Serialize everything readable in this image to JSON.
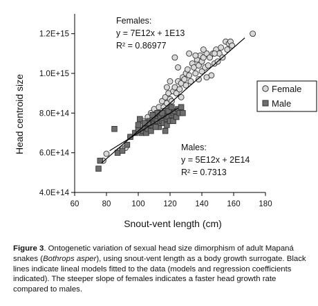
{
  "chart_data": {
    "type": "scatter",
    "xlabel": "Snout-vent length (cm)",
    "ylabel": "Head centroid size",
    "xlim": [
      60,
      180
    ],
    "ylim": [
      400000000000000.0,
      1300000000000000.0
    ],
    "x_ticks": [
      "60",
      "80",
      "100",
      "120",
      "140",
      "160",
      "180"
    ],
    "y_ticks": [
      "4.0E+14",
      "6.0E+14",
      "8.0E+14",
      "1.0E+15",
      "1.2E+15"
    ],
    "legend": {
      "position": "right",
      "entries": [
        "Female",
        "Male"
      ]
    },
    "series": [
      {
        "name": "Female",
        "marker": "circle",
        "fill": "#d9d9d9",
        "stroke": "#333333",
        "regression": {
          "slope": 7000000000000.0,
          "intercept": 10000000000000.0,
          "x_range": [
            77,
            167
          ]
        },
        "annotation": [
          "Females:",
          "y = 7E12x + 1E13",
          "R² = 0.86977"
        ],
        "points": [
          [
            78,
            560000000000000.0
          ],
          [
            80,
            595000000000000.0
          ],
          [
            88,
            610000000000000.0
          ],
          [
            90,
            620000000000000.0
          ],
          [
            92,
            625000000000000.0
          ],
          [
            95,
            680000000000000.0
          ],
          [
            100,
            730000000000000.0
          ],
          [
            103,
            760000000000000.0
          ],
          [
            105,
            750000000000000.0
          ],
          [
            106,
            780000000000000.0
          ],
          [
            108,
            800000000000000.0
          ],
          [
            110,
            820000000000000.0
          ],
          [
            112,
            800000000000000.0
          ],
          [
            113,
            830000000000000.0
          ],
          [
            115,
            860000000000000.0
          ],
          [
            116,
            830000000000000.0
          ],
          [
            117,
            880000000000000.0
          ],
          [
            118,
            850000000000000.0
          ],
          [
            119,
            900000000000000.0
          ],
          [
            120,
            870000000000000.0
          ],
          [
            121,
            860000000000000.0
          ],
          [
            122,
            910000000000000.0
          ],
          [
            123,
            930000000000000.0
          ],
          [
            124,
            900000000000000.0
          ],
          [
            125,
            960000000000000.0
          ],
          [
            126,
            920000000000000.0
          ],
          [
            127,
            950000000000000.0
          ],
          [
            128,
            980000000000000.0
          ],
          [
            129,
            970000000000000.0
          ],
          [
            130,
            1000000000000000.0
          ],
          [
            130,
            940000000000000.0
          ],
          [
            131,
            1020000000000000.0
          ],
          [
            132,
            990000000000000.0
          ],
          [
            133,
            960000000000000.0
          ],
          [
            134,
            1050000000000000.0
          ],
          [
            135,
            1030000000000000.0
          ],
          [
            136,
            1000000000000000.0
          ],
          [
            137,
            1070000000000000.0
          ],
          [
            138,
            1040000000000000.0
          ],
          [
            138,
            970000000000000.0
          ],
          [
            139,
            1090000000000000.0
          ],
          [
            140,
            1060000000000000.0
          ],
          [
            140,
            1010000000000000.0
          ],
          [
            141,
            1080000000000000.0
          ],
          [
            142,
            1030000000000000.0
          ],
          [
            143,
            1100000000000000.0
          ],
          [
            144,
            1040000000000000.0
          ],
          [
            145,
            1080000000000000.0
          ],
          [
            146,
            990000000000000.0
          ],
          [
            147,
            1100000000000000.0
          ],
          [
            148,
            1050000000000000.0
          ],
          [
            149,
            1120000000000000.0
          ],
          [
            150,
            1060000000000000.0
          ],
          [
            151,
            1100000000000000.0
          ],
          [
            152,
            1130000000000000.0
          ],
          [
            153,
            1080000000000000.0
          ],
          [
            155,
            1160000000000000.0
          ],
          [
            156,
            1120000000000000.0
          ],
          [
            157,
            1150000000000000.0
          ],
          [
            158,
            1160000000000000.0
          ],
          [
            159,
            1140000000000000.0
          ],
          [
            123,
            1080000000000000.0
          ],
          [
            125,
            1030000000000000.0
          ],
          [
            132,
            1100000000000000.0
          ],
          [
            136,
            1090000000000000.0
          ],
          [
            120,
            960000000000000.0
          ],
          [
            118,
            930000000000000.0
          ],
          [
            127,
            880000000000000.0
          ],
          [
            143,
            980000000000000.0
          ],
          [
            148,
            1100000000000000.0
          ],
          [
            141,
            1120000000000000.0
          ],
          [
            172,
            1200000000000000.0
          ]
        ]
      },
      {
        "name": "Male",
        "marker": "square",
        "fill": "#6e6e6e",
        "stroke": "#333333",
        "regression": {
          "slope": 5000000000000.0,
          "intercept": 200000000000000.0,
          "x_range": [
            82,
            125
          ]
        },
        "annotation": [
          "Males:",
          "y = 5E12x + 2E14",
          "R² = 0.7313"
        ],
        "points": [
          [
            75,
            520000000000000.0
          ],
          [
            76,
            560000000000000.0
          ],
          [
            85,
            720000000000000.0
          ],
          [
            87,
            600000000000000.0
          ],
          [
            90,
            610000000000000.0
          ],
          [
            93,
            640000000000000.0
          ],
          [
            95,
            680000000000000.0
          ],
          [
            98,
            700000000000000.0
          ],
          [
            100,
            720000000000000.0
          ],
          [
            100,
            740000000000000.0
          ],
          [
            102,
            700000000000000.0
          ],
          [
            103,
            710000000000000.0
          ],
          [
            104,
            730000000000000.0
          ],
          [
            105,
            700000000000000.0
          ],
          [
            106,
            720000000000000.0
          ],
          [
            107,
            760000000000000.0
          ],
          [
            108,
            740000000000000.0
          ],
          [
            108,
            710000000000000.0
          ],
          [
            109,
            770000000000000.0
          ],
          [
            110,
            750000000000000.0
          ],
          [
            110,
            790000000000000.0
          ],
          [
            111,
            770000000000000.0
          ],
          [
            112,
            760000000000000.0
          ],
          [
            112,
            800000000000000.0
          ],
          [
            113,
            730000000000000.0
          ],
          [
            114,
            780000000000000.0
          ],
          [
            114,
            750000000000000.0
          ],
          [
            115,
            760000000000000.0
          ],
          [
            116,
            790000000000000.0
          ],
          [
            116,
            750000000000000.0
          ],
          [
            117,
            810000000000000.0
          ],
          [
            118,
            770000000000000.0
          ],
          [
            118,
            740000000000000.0
          ],
          [
            119,
            780000000000000.0
          ],
          [
            120,
            760000000000000.0
          ],
          [
            120,
            820000000000000.0
          ],
          [
            121,
            790000000000000.0
          ],
          [
            122,
            800000000000000.0
          ],
          [
            122,
            760000000000000.0
          ],
          [
            123,
            810000000000000.0
          ],
          [
            124,
            780000000000000.0
          ],
          [
            125,
            820000000000000.0
          ],
          [
            126,
            800000000000000.0
          ],
          [
            127,
            830000000000000.0
          ],
          [
            128,
            800000000000000.0
          ],
          [
            101,
            770000000000000.0
          ],
          [
            106,
            750000000000000.0
          ],
          [
            111,
            730000000000000.0
          ],
          [
            115,
            800000000000000.0
          ],
          [
            119,
            810000000000000.0
          ],
          [
            109,
            790000000000000.0
          ],
          [
            104,
            750000000000000.0
          ],
          [
            117,
            710000000000000.0
          ],
          [
            121,
            830000000000000.0
          ]
        ]
      }
    ]
  },
  "caption": {
    "label": "Figure 3",
    "text": ". Ontogenetic variation of sexual head size dimorphism of adult Mapaná snakes (",
    "species": "Bothrops asper",
    "text2": "), using snout-vent length as a body growth surrogate. Black lines indicate lineal models fitted to the data (models and regression coefficients indicated). The steeper slope of females indicates a faster head growth rate compared to males."
  }
}
